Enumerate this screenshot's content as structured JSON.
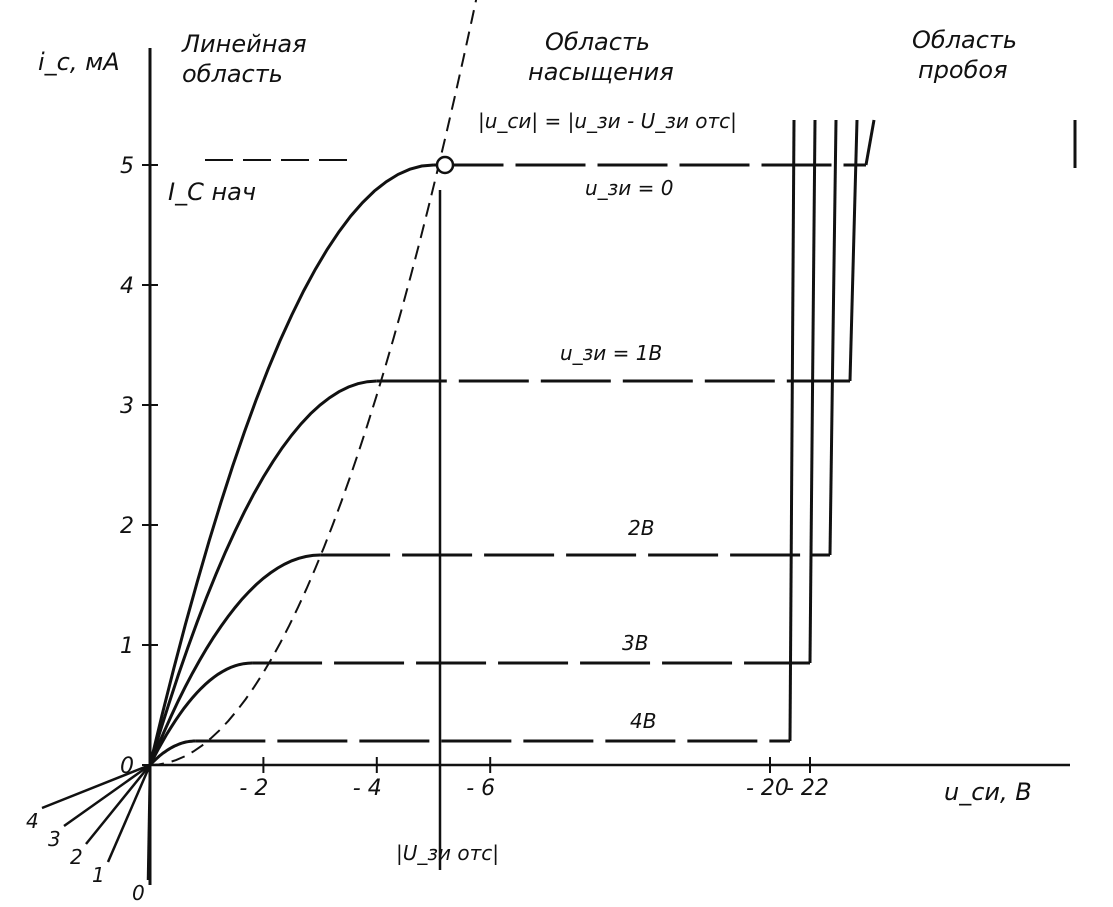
{
  "chart_data": {
    "type": "line",
    "title": "",
    "ylabel": "i_c, мА",
    "xlabel": "u_си, В",
    "ylim": [
      0,
      5.5
    ],
    "y_ticks": [
      {
        "value": 0,
        "label": "0"
      },
      {
        "value": 1,
        "label": "1"
      },
      {
        "value": 2,
        "label": "2"
      },
      {
        "value": 3,
        "label": "3"
      },
      {
        "value": 4,
        "label": "4"
      },
      {
        "value": 5,
        "label": "5"
      }
    ],
    "x_ticks": [
      {
        "value": -2,
        "label": "- 2"
      },
      {
        "value": -4,
        "label": "- 4"
      },
      {
        "value": -6,
        "label": "- 6"
      },
      {
        "value": -20,
        "label": "- 20"
      },
      {
        "value": -22,
        "label": "- 22"
      }
    ],
    "x_axis_note": "axis broken between -6 and -20 (dashed segments)",
    "region_labels": {
      "linear": [
        "Линейная",
        "область"
      ],
      "saturation": [
        "Область",
        "насыщения"
      ],
      "breakdown": [
        "Область",
        "пробоя"
      ]
    },
    "boundary_formula": "|u_си| = |u_зи - U_зи отс|",
    "pinchoff_label": "|U_зи отс|",
    "pinchoff_voltage": -5,
    "i_start_label": "I_С нач",
    "i_start_value": 5,
    "series": [
      {
        "name": "u_зи = 0",
        "saturation_current": 5.0,
        "knee_voltage": -5.0,
        "breakdown_voltage": -24.8,
        "low_label": "0"
      },
      {
        "name": "u_зи = 1В",
        "saturation_current": 3.2,
        "knee_voltage": -4.0,
        "breakdown_voltage": -24.0,
        "low_label": "1"
      },
      {
        "name": "2В",
        "saturation_current": 1.75,
        "knee_voltage": -3.0,
        "breakdown_voltage": -23.0,
        "low_label": "2"
      },
      {
        "name": "3В",
        "saturation_current": 0.85,
        "knee_voltage": -1.8,
        "breakdown_voltage": -22.0,
        "low_label": "3"
      },
      {
        "name": "4В",
        "saturation_current": 0.2,
        "knee_voltage": -0.8,
        "breakdown_voltage": -21.0,
        "low_label": "4"
      }
    ]
  }
}
